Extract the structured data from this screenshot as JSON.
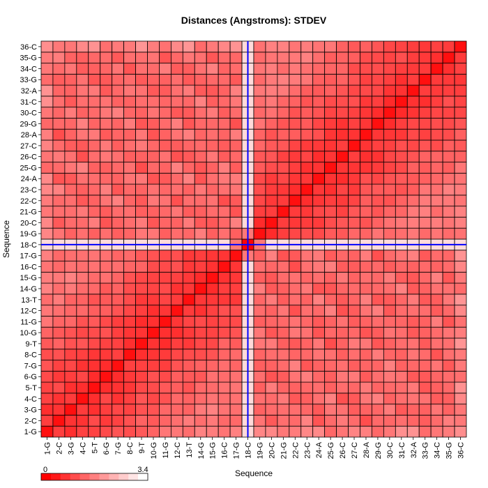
{
  "chart_data": {
    "type": "heatmap",
    "title": "Distances (Angstroms):  STDEV",
    "xlabel": "Sequence",
    "ylabel": "Sequence",
    "labels": [
      "1-G",
      "2-C",
      "3-G",
      "4-C",
      "5-T",
      "6-G",
      "7-G",
      "8-C",
      "9-T",
      "10-G",
      "11-G",
      "12-C",
      "13-T",
      "14-G",
      "15-G",
      "16-C",
      "17-G",
      "18-C",
      "19-G",
      "20-C",
      "21-G",
      "22-C",
      "23-C",
      "24-A",
      "25-G",
      "26-C",
      "27-C",
      "28-A",
      "29-G",
      "30-C",
      "31-C",
      "32-A",
      "33-G",
      "34-C",
      "35-G",
      "36-C"
    ],
    "color_scale": {
      "min": 0,
      "max": 3.4,
      "min_label": "0",
      "max_label": "3.4",
      "low_color": "#ff0000",
      "high_color": "#ffffff"
    },
    "highlight": {
      "index_label": "18-C",
      "line_color": "#0000ff"
    },
    "grid": true,
    "values_note": "symmetric matrix; approximate values estimated from color"
  }
}
